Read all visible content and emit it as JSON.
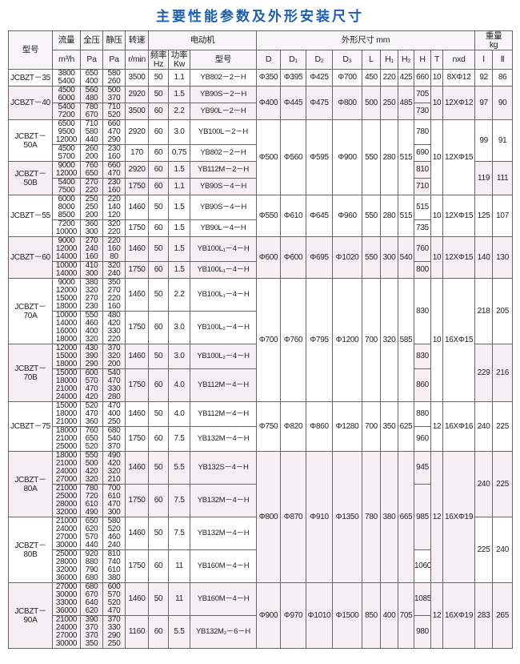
{
  "title": "主要性能参数及外形安装尺寸",
  "header": {
    "model": "型号",
    "flow": "流量",
    "flow_unit": "m³/h",
    "total": "全压",
    "static": "静压",
    "pa": "Pa",
    "speed": "转速",
    "speed_unit": "r/min",
    "motor": "电动机",
    "hz": "频率",
    "hz_unit": "Hz",
    "kw": "功率",
    "kw_unit": "Kw",
    "motor_model": "型号",
    "dims": "外形尺寸 mm",
    "D": "D",
    "D1": "D₁",
    "D2": "D₂",
    "D3": "D₃",
    "L": "L",
    "H1": "H₁",
    "H2": "H₂",
    "H": "H",
    "T": "T",
    "nxd": "nxd",
    "weight": "重量",
    "weight_unit": "kg",
    "w1": "Ⅰ",
    "w2": "Ⅱ"
  },
  "groups": [
    {
      "dims": {
        "D": "Φ350",
        "D1": "Φ395",
        "D2": "Φ425",
        "D3": "Φ700",
        "L": 450,
        "H1": 220,
        "H2": 425,
        "T": 10,
        "nxd": "8XΦ12"
      },
      "models": [
        {
          "name": "JCBZT－35",
          "weight_I": 92,
          "weight_II": 86,
          "motors": [
            {
              "speed": 3500,
              "hz": 50,
              "kw": "1.1",
              "motor": "YB802－2－H",
              "H": 660,
              "flow": [
                3800,
                5400
              ],
              "total": [
                650,
                400
              ],
              "static": [
                580,
                260
              ]
            }
          ]
        }
      ]
    },
    {
      "dims": {
        "D": "Φ400",
        "D1": "Φ445",
        "D2": "Φ475",
        "D3": "Φ800",
        "L": 500,
        "H1": 250,
        "H2": 485,
        "T": 10,
        "nxd": "12XΦ12"
      },
      "models": [
        {
          "name": "JCBZT－40",
          "weight_I": 97,
          "weight_II": 90,
          "motors": [
            {
              "speed": 2920,
              "hz": 50,
              "kw": "1.5",
              "motor": "YB90S－2－H",
              "H": 705,
              "flow": [
                4500,
                6000
              ],
              "total": [
                560,
                480
              ],
              "static": [
                500,
                370
              ]
            },
            {
              "speed": 3500,
              "hz": 60,
              "kw": "2.2",
              "motor": "YB90L－2－H",
              "H": 730,
              "flow": [
                5400,
                7200
              ],
              "total": [
                780,
                670
              ],
              "static": [
                710,
                520
              ]
            }
          ]
        }
      ]
    },
    {
      "dims": {
        "D": "Φ500",
        "D1": "Φ560",
        "D2": "Φ595",
        "D3": "Φ900",
        "L": 550,
        "H1": 280,
        "H2": 515,
        "T": 10,
        "nxd": "12XΦ15"
      },
      "models": [
        {
          "name": "JCBZT－50A",
          "weight_I": 99,
          "weight_II": 91,
          "motors": [
            {
              "speed": 2920,
              "hz": 60,
              "kw": "3.0",
              "motor": "YB100L－2－H",
              "H": 780,
              "flow": [
                6500,
                9500,
                12000
              ],
              "total": [
                710,
                580,
                440
              ],
              "static": [
                660,
                470,
                290
              ]
            },
            {
              "speed": 170,
              "hz": 60,
              "kw": "0.75",
              "motor": "YB802－2－H",
              "H": 690,
              "flow": [
                4500,
                5700
              ],
              "total": [
                260,
                200
              ],
              "static": [
                230,
                160
              ]
            }
          ]
        },
        {
          "name": "JCBZT－50B",
          "weight_I": 119,
          "weight_II": 111,
          "motors": [
            {
              "speed": 2920,
              "hz": 60,
              "kw": "1.5",
              "motor": "YB112M－2－H",
              "H": 810,
              "flow": [
                9000,
                12000
              ],
              "total": [
                760,
                650
              ],
              "static": [
                660,
                470
              ]
            },
            {
              "speed": 1750,
              "hz": 60,
              "kw": "1.1",
              "motor": "YB90S－4－H",
              "H": 710,
              "flow": [
                5400,
                7500
              ],
              "total": [
                270,
                220
              ],
              "static": [
                230,
                160
              ]
            }
          ]
        }
      ]
    },
    {
      "dims": {
        "D": "Φ550",
        "D1": "Φ610",
        "D2": "Φ645",
        "D3": "Φ960",
        "L": 550,
        "H1": 280,
        "H2": 515,
        "T": 10,
        "nxd": "12XΦ15"
      },
      "models": [
        {
          "name": "JCBZT－55",
          "weight_I": 125,
          "weight_II": 107,
          "motors": [
            {
              "speed": 1460,
              "hz": 50,
              "kw": "1.5",
              "motor": "YB90S－4－H",
              "H": 515,
              "flow": [
                6000,
                8000,
                8500
              ],
              "total": [
                250,
                250,
                200
              ],
              "static": [
                220,
                140,
                120
              ]
            },
            {
              "speed": 1750,
              "hz": 60,
              "kw": "1.5",
              "motor": "YB90L－4－H",
              "H": 735,
              "flow": [
                7200,
                10000
              ],
              "total": [
                360,
                300
              ],
              "static": [
                320,
                220
              ]
            }
          ]
        }
      ]
    },
    {
      "dims": {
        "D": "Φ600",
        "D1": "Φ600",
        "D2": "Φ695",
        "D3": "Φ1020",
        "L": 550,
        "H1": 300,
        "H2": 540,
        "T": 10,
        "nxd": "12XΦ15"
      },
      "models": [
        {
          "name": "JCBZT－60",
          "weight_I": 140,
          "weight_II": 130,
          "motors": [
            {
              "speed": 1460,
              "hz": 50,
              "kw": "1.5",
              "motor": "YB100L₁－4－H",
              "H": 760,
              "flow": [
                9000,
                12000,
                14000
              ],
              "total": [
                270,
                240,
                160
              ],
              "static": [
                220,
                160,
                80
              ]
            },
            {
              "speed": 1750,
              "hz": 60,
              "kw": "1.5",
              "motor": "YB100L₁－4－H",
              "H": 800,
              "flow": [
                10000,
                14000
              ],
              "total": [
                410,
                300
              ],
              "static": [
                320,
                240
              ]
            }
          ]
        }
      ]
    },
    {
      "dims": {
        "D": "Φ700",
        "D1": "Φ760",
        "D2": "Φ795",
        "D3": "Φ1200",
        "L": 700,
        "H1": 320,
        "H2": 585,
        "T": 10,
        "nxd": "16XΦ15"
      },
      "models": [
        {
          "name": "JCBZT－70A",
          "weight_I": 218,
          "weight_II": 205,
          "motors": [
            {
              "speed": 1460,
              "hz": 50,
              "kw": "2.2",
              "motor": "YB100L₁－4－H",
              "H": 830,
              "flow": [
                9000,
                12000,
                15000,
                18000
              ],
              "total": [
                380,
                320,
                270,
                230
              ],
              "static": [
                350,
                270,
                220,
                160
              ]
            },
            {
              "speed": 1750,
              "hz": 60,
              "kw": "3.0",
              "motor": "YB100L₂－4－H",
              "H": null,
              "flow": [
                10000,
                14000,
                16000,
                18000
              ],
              "total": [
                550,
                460,
                400,
                320
              ],
              "static": [
                480,
                420,
                330,
                220
              ]
            }
          ]
        },
        {
          "name": "JCBZT－70B",
          "weight_I": 229,
          "weight_II": 216,
          "motors": [
            {
              "speed": 1460,
              "hz": 50,
              "kw": "3.0",
              "motor": "YB100L₂－4－H",
              "H": 830,
              "flow": [
                12000,
                15000,
                18000
              ],
              "total": [
                430,
                390,
                290
              ],
              "static": [
                370,
                320,
                200
              ]
            },
            {
              "speed": 1750,
              "hz": 60,
              "kw": "4.0",
              "motor": "YB112M－4－H",
              "H": 860,
              "flow": [
                15000,
                18000,
                21000,
                24000
              ],
              "total": [
                600,
                570,
                470,
                420
              ],
              "static": [
                540,
                470,
                330,
                280
              ]
            }
          ]
        }
      ]
    },
    {
      "dims": {
        "D": "Φ750",
        "D1": "Φ820",
        "D2": "Φ860",
        "D3": "Φ1280",
        "L": 700,
        "H1": 350,
        "H2": 625,
        "T": 12,
        "nxd": "16XΦ16"
      },
      "models": [
        {
          "name": "JCBZT－75",
          "weight_I": 240,
          "weight_II": 225,
          "motors": [
            {
              "speed": 1460,
              "hz": 50,
              "kw": "4.0",
              "motor": "YB112M－4－H",
              "H": 880,
              "flow": [
                15000,
                18000,
                21000
              ],
              "total": [
                520,
                470,
                360
              ],
              "static": [
                470,
                400,
                250
              ]
            },
            {
              "speed": 1750,
              "hz": 60,
              "kw": "7.5",
              "motor": "YB132M－4－H",
              "H": 960,
              "flow": [
                18000,
                21000,
                25000
              ],
              "total": [
                760,
                650,
                520
              ],
              "static": [
                680,
                540,
                370
              ]
            }
          ]
        }
      ]
    },
    {
      "dims": {
        "D": "Φ800",
        "D1": "Φ870",
        "D2": "Φ910",
        "D3": "Φ1350",
        "L": 780,
        "H1": 380,
        "H2": 665,
        "T": 12,
        "nxd": "16XΦ19"
      },
      "models": [
        {
          "name": "JCBZT－80A",
          "weight_I": 240,
          "weight_II": 225,
          "motors": [
            {
              "speed": 1460,
              "hz": 50,
              "kw": "5.5",
              "motor": "YB132S－4－H",
              "H": 945,
              "flow": [
                18000,
                21000,
                24000,
                27000
              ],
              "total": [
                550,
                500,
                420,
                320
              ],
              "static": [
                490,
                420,
                320,
                210
              ]
            },
            {
              "speed": 1750,
              "hz": 60,
              "kw": "7.5",
              "motor": "YB132M－4－H",
              "H": 985,
              "flow": [
                21000,
                25000,
                28000,
                32000
              ],
              "total": [
                780,
                720,
                610,
                490
              ],
              "static": [
                700,
                610,
                470,
                300
              ]
            }
          ]
        },
        {
          "name": "JCBZT－80B",
          "weight_I": 225,
          "weight_II": 240,
          "motors": [
            {
              "speed": 1460,
              "hz": 50,
              "kw": "7.5",
              "motor": "YB132M－4－H",
              "H": null,
              "flow": [
                21000,
                24000,
                27000,
                30000
              ],
              "total": [
                650,
                620,
                570,
                440
              ],
              "static": [
                580,
                520,
                460,
                240
              ]
            },
            {
              "speed": 1750,
              "hz": 60,
              "kw": "11",
              "motor": "YB160M－4－H",
              "H": 1060,
              "flow": [
                25000,
                28000,
                32000,
                36000
              ],
              "total": [
                920,
                880,
                790,
                680
              ],
              "static": [
                810,
                740,
                610,
                380
              ]
            }
          ]
        }
      ]
    },
    {
      "dims": {
        "D": "Φ900",
        "D1": "Φ970",
        "D2": "Φ1010",
        "D3": "Φ1500",
        "L": 850,
        "H1": 400,
        "H2": 705,
        "T": 12,
        "nxd": "16XΦ19"
      },
      "models": [
        {
          "name": "JCBZT－90A",
          "weight_I": 283,
          "weight_II": 265,
          "motors": [
            {
              "speed": 1460,
              "hz": 50,
              "kw": "11",
              "motor": "YB160M－4－H",
              "H": 1085,
              "flow": [
                27000,
                30000,
                33000,
                36000
              ],
              "total": [
                680,
                670,
                640,
                620
              ],
              "static": [
                600,
                570,
                520,
                470
              ]
            },
            {
              "speed": 1160,
              "hz": 60,
              "kw": "5.5",
              "motor": "YB132M₂－6－H",
              "H": 980,
              "flow": [
                21000,
                24000,
                27000,
                30000
              ],
              "total": [
                390,
                370,
                370,
                350
              ],
              "static": [
                370,
                330,
                290,
                250
              ]
            }
          ]
        }
      ]
    }
  ]
}
